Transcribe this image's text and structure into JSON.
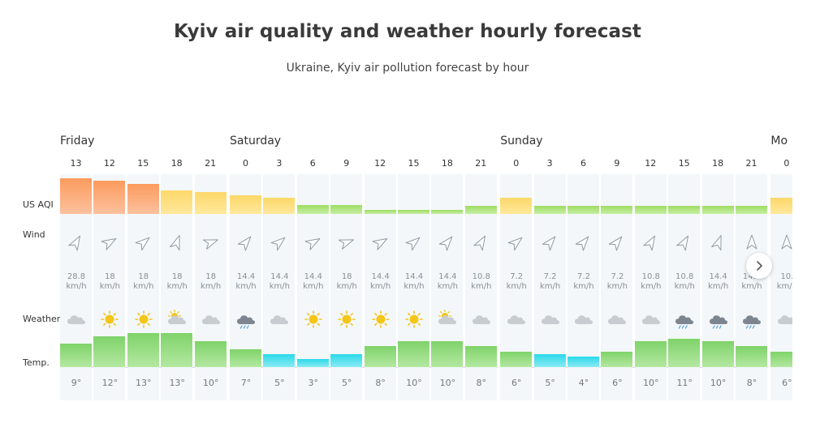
{
  "header": {
    "title": "Kyiv air quality and weather hourly forecast",
    "subtitle": "Ukraine, Kyiv air pollution forecast by hour"
  },
  "row_labels": {
    "aqi": "US AQI",
    "wind": "Wind",
    "weather": "Weather",
    "temp": "Temp."
  },
  "colors": {
    "aqi_orange": "#fb9b5e",
    "aqi_yellow": "#fddd6e",
    "aqi_green": "#a5e26a",
    "temp_green": "#7fd36a",
    "temp_cyan": "#2bd9ea",
    "column_bg": "#f3f7f9",
    "sun": "#f5c518",
    "cloud": "#c7ccd1",
    "rain_cloud": "#7d8690"
  },
  "days": [
    {
      "name": "Friday",
      "first_col": 0
    },
    {
      "name": "Saturday",
      "first_col": 5
    },
    {
      "name": "Sunday",
      "first_col": 13
    },
    {
      "name": "Mo",
      "first_col": 21
    }
  ],
  "hours": [
    {
      "hour": "13",
      "aqi_level": "orange",
      "aqi_rel": 0.98,
      "wind_dir": 30,
      "wind_speed": "28.8",
      "wind_unit": "km/h",
      "weather": "cloudy",
      "temp": "9°",
      "temp_value": 9,
      "temp_color": "green"
    },
    {
      "hour": "12",
      "aqi_level": "orange",
      "aqi_rel": 0.9,
      "wind_dir": 60,
      "wind_speed": "18",
      "wind_unit": "km/h",
      "weather": "sunny",
      "temp": "12°",
      "temp_value": 12,
      "temp_color": "green"
    },
    {
      "hour": "15",
      "aqi_level": "orange",
      "aqi_rel": 0.82,
      "wind_dir": 50,
      "wind_speed": "18",
      "wind_unit": "km/h",
      "weather": "sunny",
      "temp": "13°",
      "temp_value": 13,
      "temp_color": "green"
    },
    {
      "hour": "18",
      "aqi_level": "yellow",
      "aqi_rel": 0.64,
      "wind_dir": 20,
      "wind_speed": "18",
      "wind_unit": "km/h",
      "weather": "partly-cloudy",
      "temp": "13°",
      "temp_value": 13,
      "temp_color": "green"
    },
    {
      "hour": "21",
      "aqi_level": "yellow",
      "aqi_rel": 0.6,
      "wind_dir": 70,
      "wind_speed": "18",
      "wind_unit": "km/h",
      "weather": "cloudy",
      "temp": "10°",
      "temp_value": 10,
      "temp_color": "green"
    },
    {
      "hour": "0",
      "aqi_level": "yellow",
      "aqi_rel": 0.5,
      "wind_dir": 40,
      "wind_speed": "14.4",
      "wind_unit": "km/h",
      "weather": "rain",
      "temp": "7°",
      "temp_value": 7,
      "temp_color": "green"
    },
    {
      "hour": "3",
      "aqi_level": "yellow",
      "aqi_rel": 0.44,
      "wind_dir": 50,
      "wind_speed": "14.4",
      "wind_unit": "km/h",
      "weather": "cloudy",
      "temp": "5°",
      "temp_value": 5,
      "temp_color": "cyan"
    },
    {
      "hour": "6",
      "aqi_level": "green",
      "aqi_rel": 0.24,
      "wind_dir": 60,
      "wind_speed": "14.4",
      "wind_unit": "km/h",
      "weather": "sunny",
      "temp": "3°",
      "temp_value": 3,
      "temp_color": "cyan"
    },
    {
      "hour": "9",
      "aqi_level": "green",
      "aqi_rel": 0.24,
      "wind_dir": 70,
      "wind_speed": "18",
      "wind_unit": "km/h",
      "weather": "sunny",
      "temp": "5°",
      "temp_value": 5,
      "temp_color": "cyan"
    },
    {
      "hour": "12",
      "aqi_level": "green",
      "aqi_rel": 0.12,
      "wind_dir": 60,
      "wind_speed": "14.4",
      "wind_unit": "km/h",
      "weather": "sunny",
      "temp": "8°",
      "temp_value": 8,
      "temp_color": "green"
    },
    {
      "hour": "15",
      "aqi_level": "green",
      "aqi_rel": 0.1,
      "wind_dir": 50,
      "wind_speed": "14.4",
      "wind_unit": "km/h",
      "weather": "sunny",
      "temp": "10°",
      "temp_value": 10,
      "temp_color": "green"
    },
    {
      "hour": "18",
      "aqi_level": "green",
      "aqi_rel": 0.1,
      "wind_dir": 40,
      "wind_speed": "14.4",
      "wind_unit": "km/h",
      "weather": "partly-cloudy",
      "temp": "10°",
      "temp_value": 10,
      "temp_color": "green"
    },
    {
      "hour": "21",
      "aqi_level": "green",
      "aqi_rel": 0.22,
      "wind_dir": 30,
      "wind_speed": "10.8",
      "wind_unit": "km/h",
      "weather": "cloudy",
      "temp": "8°",
      "temp_value": 8,
      "temp_color": "green"
    },
    {
      "hour": "0",
      "aqi_level": "yellow",
      "aqi_rel": 0.44,
      "wind_dir": 50,
      "wind_speed": "7.2",
      "wind_unit": "km/h",
      "weather": "cloudy",
      "temp": "6°",
      "temp_value": 6,
      "temp_color": "green"
    },
    {
      "hour": "3",
      "aqi_level": "green",
      "aqi_rel": 0.22,
      "wind_dir": 40,
      "wind_speed": "7.2",
      "wind_unit": "km/h",
      "weather": "cloudy",
      "temp": "5°",
      "temp_value": 5,
      "temp_color": "cyan"
    },
    {
      "hour": "6",
      "aqi_level": "green",
      "aqi_rel": 0.22,
      "wind_dir": 40,
      "wind_speed": "7.2",
      "wind_unit": "km/h",
      "weather": "cloudy",
      "temp": "4°",
      "temp_value": 4,
      "temp_color": "cyan"
    },
    {
      "hour": "9",
      "aqi_level": "green",
      "aqi_rel": 0.22,
      "wind_dir": 40,
      "wind_speed": "7.2",
      "wind_unit": "km/h",
      "weather": "cloudy",
      "temp": "6°",
      "temp_value": 6,
      "temp_color": "green"
    },
    {
      "hour": "12",
      "aqi_level": "green",
      "aqi_rel": 0.22,
      "wind_dir": 30,
      "wind_speed": "10.8",
      "wind_unit": "km/h",
      "weather": "cloudy",
      "temp": "10°",
      "temp_value": 10,
      "temp_color": "green"
    },
    {
      "hour": "15",
      "aqi_level": "green",
      "aqi_rel": 0.22,
      "wind_dir": 30,
      "wind_speed": "10.8",
      "wind_unit": "km/h",
      "weather": "rain",
      "temp": "11°",
      "temp_value": 11,
      "temp_color": "green"
    },
    {
      "hour": "18",
      "aqi_level": "green",
      "aqi_rel": 0.22,
      "wind_dir": 20,
      "wind_speed": "14.4",
      "wind_unit": "km/h",
      "weather": "rain",
      "temp": "10°",
      "temp_value": 10,
      "temp_color": "green"
    },
    {
      "hour": "21",
      "aqi_level": "green",
      "aqi_rel": 0.22,
      "wind_dir": 0,
      "wind_speed": "14.4",
      "wind_unit": "km/h",
      "weather": "rain",
      "temp": "8°",
      "temp_value": 8,
      "temp_color": "green"
    },
    {
      "hour": "0",
      "aqi_level": "yellow",
      "aqi_rel": 0.44,
      "wind_dir": 0,
      "wind_speed": "10.",
      "wind_unit": "km/h",
      "weather": "cloudy",
      "temp": "6°",
      "temp_value": 6,
      "temp_color": "green"
    }
  ],
  "next_button_icon": "chevron-right-icon"
}
